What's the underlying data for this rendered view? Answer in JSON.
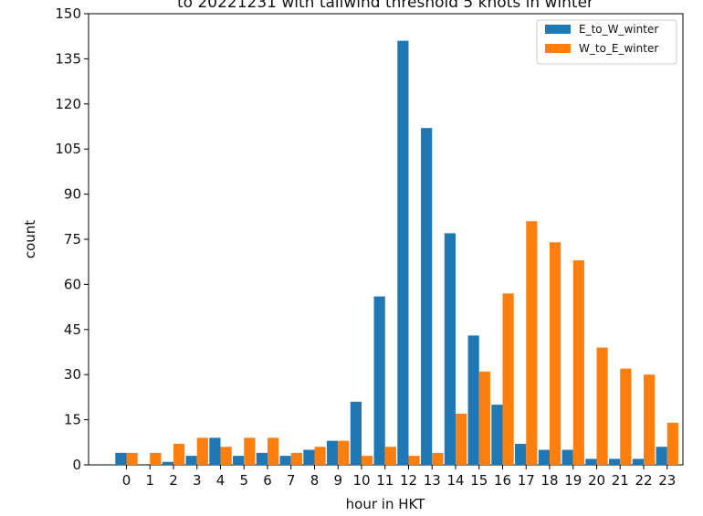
{
  "chart_data": {
    "type": "bar",
    "title": "to 20221231 with tailwind threshold 5 knots in winter",
    "xlabel": "hour in HKT",
    "ylabel": "count",
    "categories": [
      "0",
      "1",
      "2",
      "3",
      "4",
      "5",
      "6",
      "7",
      "8",
      "9",
      "10",
      "11",
      "12",
      "13",
      "14",
      "15",
      "16",
      "17",
      "18",
      "19",
      "20",
      "21",
      "22",
      "23"
    ],
    "series": [
      {
        "name": "E_to_W_winter",
        "color": "#1f77b4",
        "values": [
          4,
          0,
          1,
          3,
          9,
          3,
          4,
          3,
          5,
          8,
          21,
          56,
          141,
          112,
          77,
          43,
          20,
          7,
          5,
          5,
          2,
          2,
          2,
          6
        ]
      },
      {
        "name": "W_to_E_winter",
        "color": "#ff7f0e",
        "values": [
          4,
          4,
          7,
          9,
          6,
          9,
          9,
          4,
          6,
          8,
          3,
          6,
          3,
          4,
          17,
          31,
          57,
          81,
          74,
          68,
          39,
          32,
          30,
          14
        ]
      }
    ],
    "yticks": [
      0,
      15,
      30,
      45,
      60,
      75,
      90,
      105,
      120,
      135,
      150
    ],
    "ylim": [
      0,
      150
    ],
    "legend_position": "top-right",
    "grid": false
  }
}
